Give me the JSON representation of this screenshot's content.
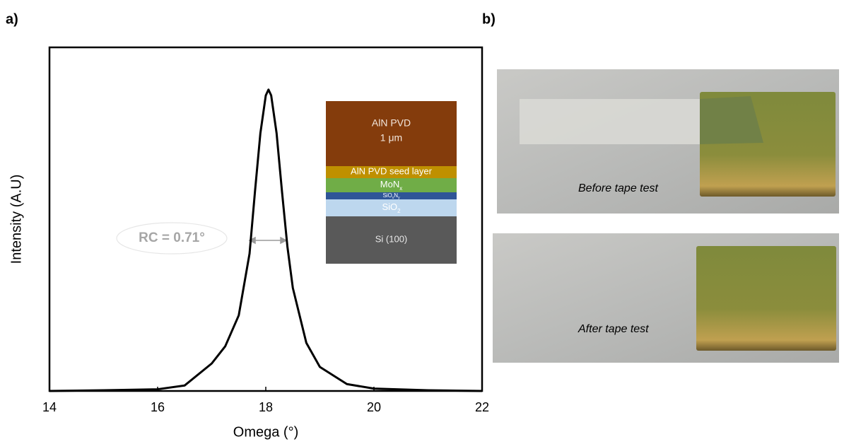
{
  "panel_labels": [
    "a)",
    "b)"
  ],
  "chart_data": {
    "type": "line",
    "x_label": "Omega (°)",
    "y_label": "Intensity (A.U)",
    "x": [
      14,
      15,
      16,
      16.5,
      17,
      17.25,
      17.5,
      17.7,
      17.8,
      17.9,
      18.0,
      18.05,
      18.1,
      18.2,
      18.3,
      18.4,
      18.5,
      18.75,
      19.0,
      19.5,
      20,
      21,
      22
    ],
    "series": [
      {
        "color": "#000000",
        "values": [
          0.0,
          0.002,
          0.005,
          0.016,
          0.08,
          0.13,
          0.22,
          0.4,
          0.58,
          0.75,
          0.86,
          0.877,
          0.86,
          0.75,
          0.58,
          0.42,
          0.3,
          0.14,
          0.07,
          0.02,
          0.007,
          0.002,
          0.0
        ]
      }
    ],
    "xlim": [
      14,
      22
    ],
    "ylim": [
      0,
      1
    ],
    "xticks": [
      14,
      16,
      18,
      20,
      22
    ],
    "annotation": "RC = 0.71°"
  },
  "inset": {
    "layers": [
      {
        "color": "#843c0c",
        "lines": [
          [
            {
              "text": "AlN PVD"
            }
          ],
          [
            {
              "text": "1 μm"
            }
          ]
        ]
      },
      {
        "color": "#bf9000",
        "lines": [
          [
            {
              "text": "AlN PVD seed layer"
            }
          ]
        ]
      },
      {
        "color": "#70ad47",
        "lines": [
          [
            {
              "text": "MoN"
            },
            {
              "text": "x",
              "sub": true
            }
          ]
        ]
      },
      {
        "color": "#2f5597",
        "lines": [
          [
            {
              "text": "SiO"
            },
            {
              "text": "x",
              "sub": true
            },
            {
              "text": "N"
            },
            {
              "text": "y",
              "sub": true
            }
          ]
        ]
      },
      {
        "color": "#bdd7ee",
        "lines": [
          [
            {
              "text": "SiO"
            },
            {
              "text": "2",
              "sub": true
            }
          ]
        ]
      },
      {
        "color": "#595959",
        "lines": [
          [
            {
              "text": "Si (100)"
            }
          ]
        ]
      }
    ]
  },
  "photos": [
    {
      "caption": "Before tape test"
    },
    {
      "caption": "After tape test"
    }
  ]
}
